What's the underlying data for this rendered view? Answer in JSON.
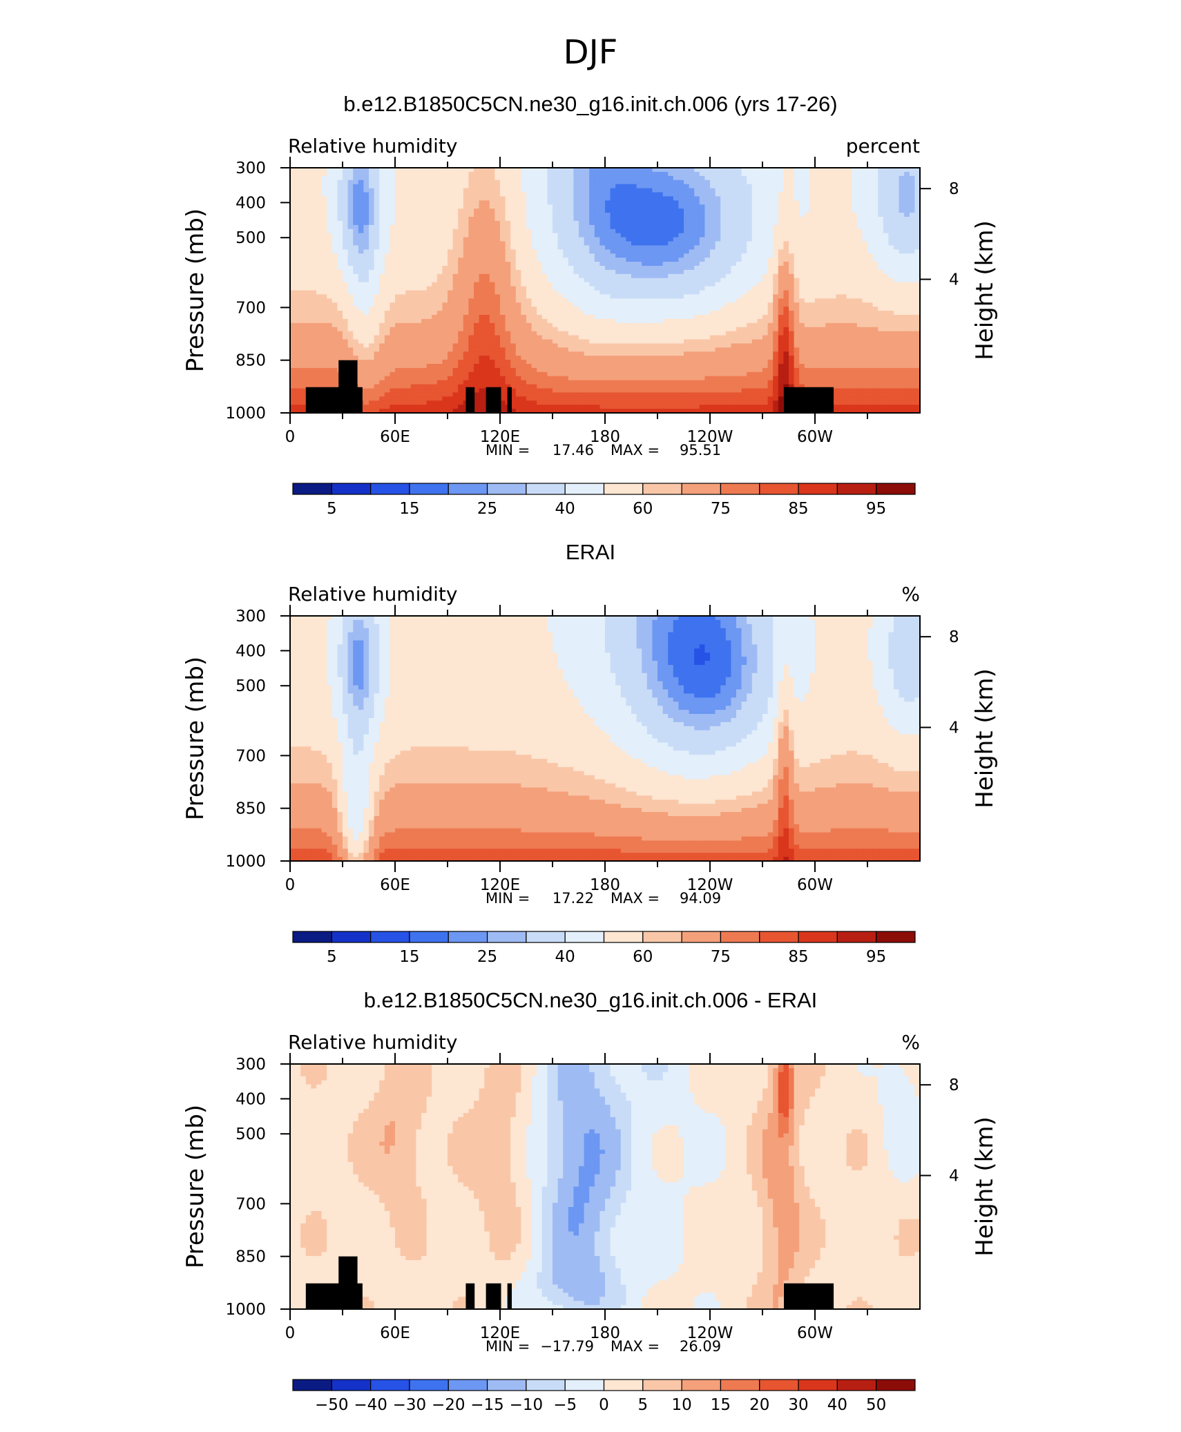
{
  "figure_title": "DJF",
  "colors": {
    "rh_scale": [
      "#0b1b84",
      "#1432c8",
      "#2652e6",
      "#3e72ee",
      "#6c97f2",
      "#9fbbf4",
      "#c9dcf7",
      "#e3effb",
      "#fde6d2",
      "#f9c7a8",
      "#f4a07b",
      "#ee7a52",
      "#e75531",
      "#d9361c",
      "#b71f12",
      "#8c0d08"
    ],
    "land_mask": "#000000"
  },
  "chart_data": [
    {
      "type": "heatmap",
      "title": "b.e12.B1850C5CN.ne30_g16.init.ch.006 (yrs 17-26)",
      "left_label": "Relative humidity",
      "right_label": "percent",
      "ylabel": "Pressure (mb)",
      "ylabel_right": "Height (km)",
      "x_ticks": [
        "0",
        "60E",
        "120E",
        "180",
        "120W",
        "60W"
      ],
      "y_ticks": [
        "300",
        "400",
        "500",
        "700",
        "850",
        "1000"
      ],
      "y_ticks_right": [
        "8",
        "4"
      ],
      "stats": {
        "min_label": "MIN =",
        "min": "17.46",
        "max_label": "MAX =",
        "max": "95.51"
      },
      "colorbar_labels": [
        "5",
        "15",
        "25",
        "40",
        "60",
        "75",
        "85",
        "95"
      ],
      "colorbar_levels": [
        5,
        10,
        15,
        20,
        25,
        30,
        40,
        50,
        60,
        65,
        75,
        80,
        85,
        90,
        95
      ],
      "value_range": [
        17.46,
        95.51
      ]
    },
    {
      "type": "heatmap",
      "title": "ERAI",
      "left_label": "Relative humidity",
      "right_label": "%",
      "ylabel": "Pressure (mb)",
      "ylabel_right": "Height (km)",
      "x_ticks": [
        "0",
        "60E",
        "120E",
        "180",
        "120W",
        "60W"
      ],
      "y_ticks": [
        "300",
        "400",
        "500",
        "700",
        "850",
        "1000"
      ],
      "y_ticks_right": [
        "8",
        "4"
      ],
      "stats": {
        "min_label": "MIN =",
        "min": "17.22",
        "max_label": "MAX =",
        "max": "94.09"
      },
      "colorbar_labels": [
        "5",
        "15",
        "25",
        "40",
        "60",
        "75",
        "85",
        "95"
      ],
      "colorbar_levels": [
        5,
        10,
        15,
        20,
        25,
        30,
        40,
        50,
        60,
        65,
        75,
        80,
        85,
        90,
        95
      ],
      "value_range": [
        17.22,
        94.09
      ]
    },
    {
      "type": "heatmap",
      "title": "b.e12.B1850C5CN.ne30_g16.init.ch.006 - ERAI",
      "left_label": "Relative humidity",
      "right_label": "%",
      "ylabel": "Pressure (mb)",
      "ylabel_right": "Height (km)",
      "x_ticks": [
        "0",
        "60E",
        "120E",
        "180",
        "120W",
        "60W"
      ],
      "y_ticks": [
        "300",
        "400",
        "500",
        "700",
        "850",
        "1000"
      ],
      "y_ticks_right": [
        "8",
        "4"
      ],
      "stats": {
        "min_label": "MIN =",
        "min": "−17.79",
        "max_label": "MAX =",
        "max": "26.09"
      },
      "colorbar_labels": [
        "−50",
        "−40",
        "−30",
        "−20",
        "−15",
        "−10",
        "−5",
        "0",
        "5",
        "10",
        "15",
        "20",
        "30",
        "40",
        "50"
      ],
      "colorbar_levels": [
        -50,
        -40,
        -30,
        -20,
        -15,
        -10,
        -5,
        0,
        5,
        10,
        15,
        20,
        30,
        40,
        50
      ],
      "value_range": [
        -17.79,
        26.09
      ]
    }
  ]
}
